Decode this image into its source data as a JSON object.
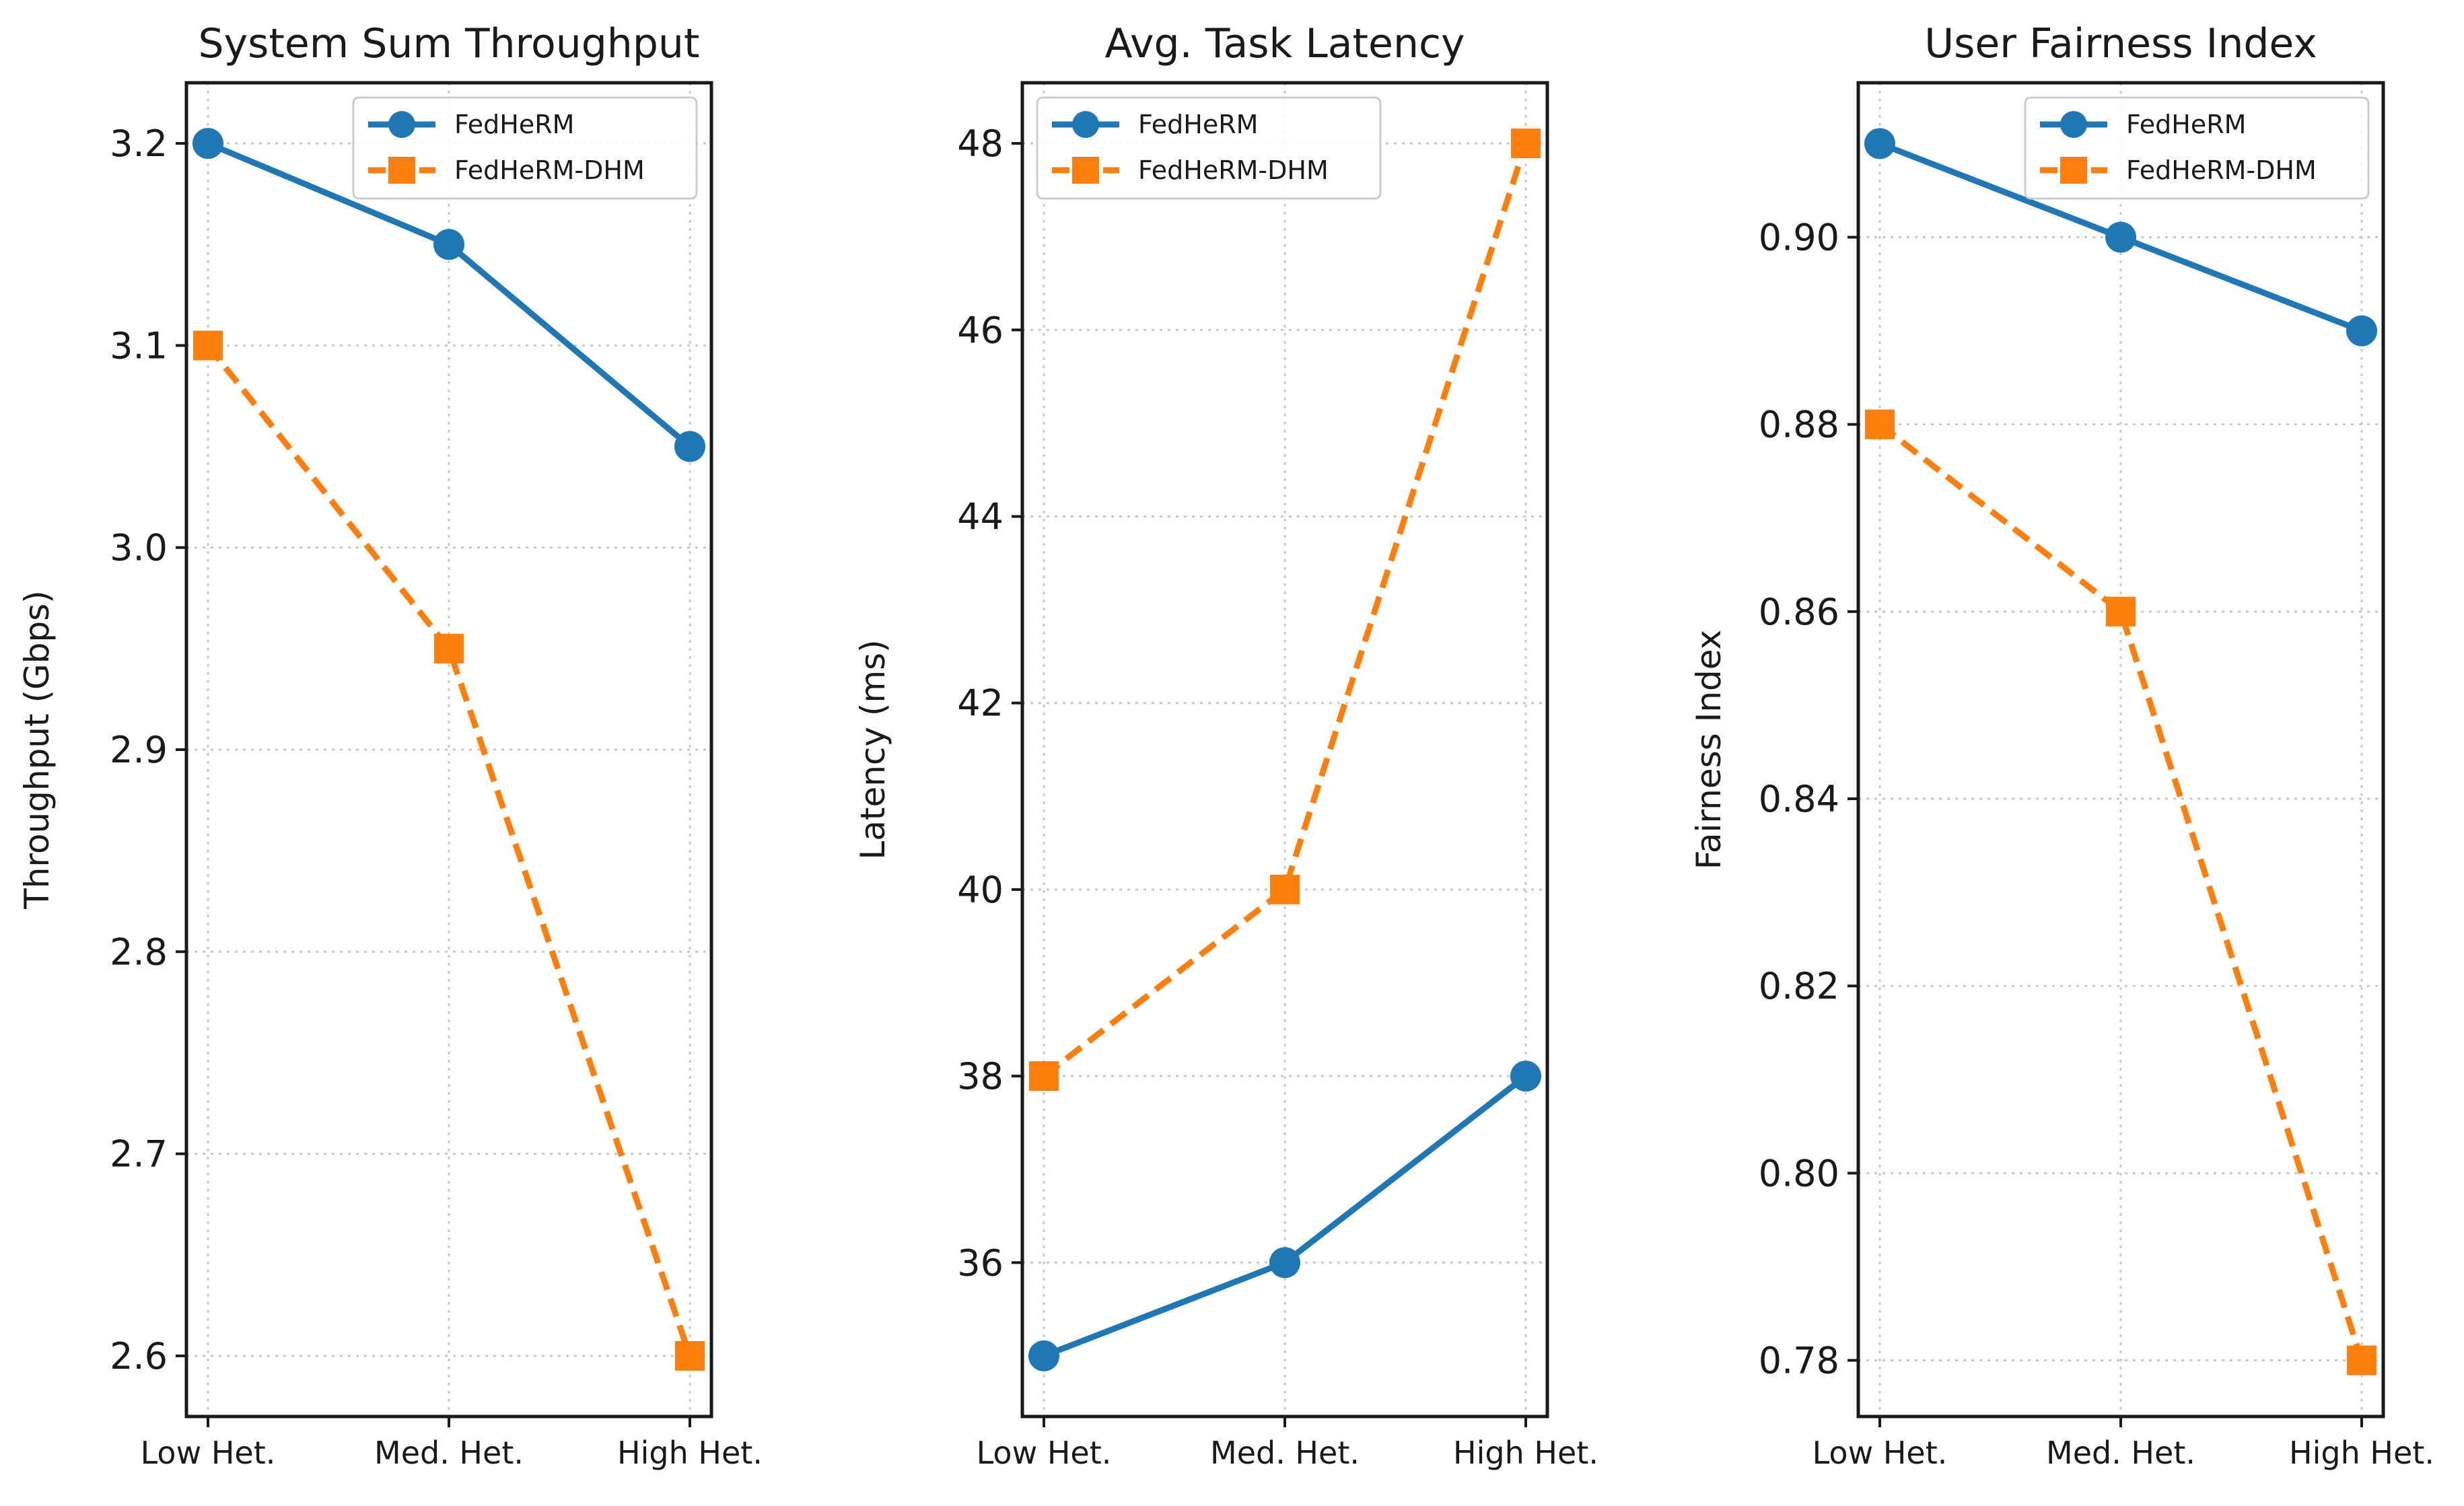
{
  "colors": {
    "fedherm": "#1f77b4",
    "fedherm_dhm": "#ff7f0e"
  },
  "chart_data": [
    {
      "type": "line",
      "title": "System Sum Throughput",
      "xlabel": "",
      "ylabel": "Throughput (Gbps)",
      "categories": [
        "Low Het.",
        "Med. Het.",
        "High Het."
      ],
      "ylim": [
        2.57,
        3.23
      ],
      "yticks": [
        "2.6",
        "2.7",
        "2.8",
        "2.9",
        "3.0",
        "3.1",
        "3.2"
      ],
      "grid": true,
      "legend": "upper right",
      "series": [
        {
          "name": "FedHeRM",
          "values": [
            3.2,
            3.15,
            3.05
          ],
          "marker": "circle",
          "style": "solid"
        },
        {
          "name": "FedHeRM-DHM",
          "values": [
            3.1,
            2.95,
            2.6
          ],
          "marker": "square",
          "style": "dashed"
        }
      ]
    },
    {
      "type": "line",
      "title": "Avg. Task Latency",
      "xlabel": "",
      "ylabel": "Latency (ms)",
      "categories": [
        "Low Het.",
        "Med. Het.",
        "High Het."
      ],
      "ylim": [
        34.35,
        48.65
      ],
      "yticks": [
        "36",
        "38",
        "40",
        "42",
        "44",
        "46",
        "48"
      ],
      "grid": true,
      "legend": "upper left",
      "series": [
        {
          "name": "FedHeRM",
          "values": [
            35,
            36,
            38
          ],
          "marker": "circle",
          "style": "solid"
        },
        {
          "name": "FedHeRM-DHM",
          "values": [
            38,
            40,
            48
          ],
          "marker": "square",
          "style": "dashed"
        }
      ]
    },
    {
      "type": "line",
      "title": "User Fairness Index",
      "xlabel": "",
      "ylabel": "Fairness Index",
      "categories": [
        "Low Het.",
        "Med. Het.",
        "High Het."
      ],
      "ylim": [
        0.774,
        0.9165
      ],
      "yticks": [
        "0.78",
        "0.80",
        "0.82",
        "0.84",
        "0.86",
        "0.88",
        "0.90"
      ],
      "grid": true,
      "legend": "upper right",
      "series": [
        {
          "name": "FedHeRM",
          "values": [
            0.91,
            0.9,
            0.89
          ],
          "marker": "circle",
          "style": "solid"
        },
        {
          "name": "FedHeRM-DHM",
          "values": [
            0.88,
            0.86,
            0.78
          ],
          "marker": "square",
          "style": "dashed"
        }
      ]
    }
  ]
}
